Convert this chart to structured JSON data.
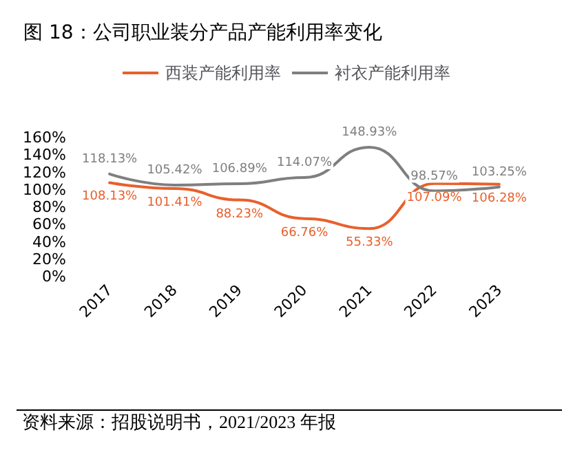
{
  "chart_data": {
    "type": "line",
    "title": "图 18：公司职业装分产品产能利用率变化",
    "categories": [
      "2017",
      "2018",
      "2019",
      "2020",
      "2021",
      "2022",
      "2023"
    ],
    "series": [
      {
        "name": "西装产能利用率",
        "color": "#e8602c",
        "values": [
          108.13,
          101.41,
          88.23,
          66.76,
          55.33,
          107.09,
          106.28
        ],
        "value_labels": [
          "108.13%",
          "101.41%",
          "88.23%",
          "66.76%",
          "55.33%",
          "107.09%",
          "106.28%"
        ]
      },
      {
        "name": "衬衣产能利用率",
        "color": "#7f7f7f",
        "values": [
          118.13,
          105.42,
          106.89,
          114.07,
          148.93,
          98.57,
          103.25
        ],
        "value_labels": [
          "118.13%",
          "105.42%",
          "106.89%",
          "114.07%",
          "148.93%",
          "98.57%",
          "103.25%"
        ]
      }
    ],
    "ylim": [
      0,
      160
    ],
    "yticks": [
      {
        "value": 0,
        "label": "0%"
      },
      {
        "value": 20,
        "label": "20%"
      },
      {
        "value": 40,
        "label": "40%"
      },
      {
        "value": 60,
        "label": "60%"
      },
      {
        "value": 80,
        "label": "80%"
      },
      {
        "value": 100,
        "label": "100%"
      },
      {
        "value": 120,
        "label": "120%"
      },
      {
        "value": 140,
        "label": "140%"
      },
      {
        "value": 160,
        "label": "160%"
      }
    ],
    "grid": false,
    "legend": "top",
    "marker": "none",
    "line_style": "solid",
    "annotations": [
      "资料来源：招股说明书，2021/2023 年报"
    ]
  }
}
